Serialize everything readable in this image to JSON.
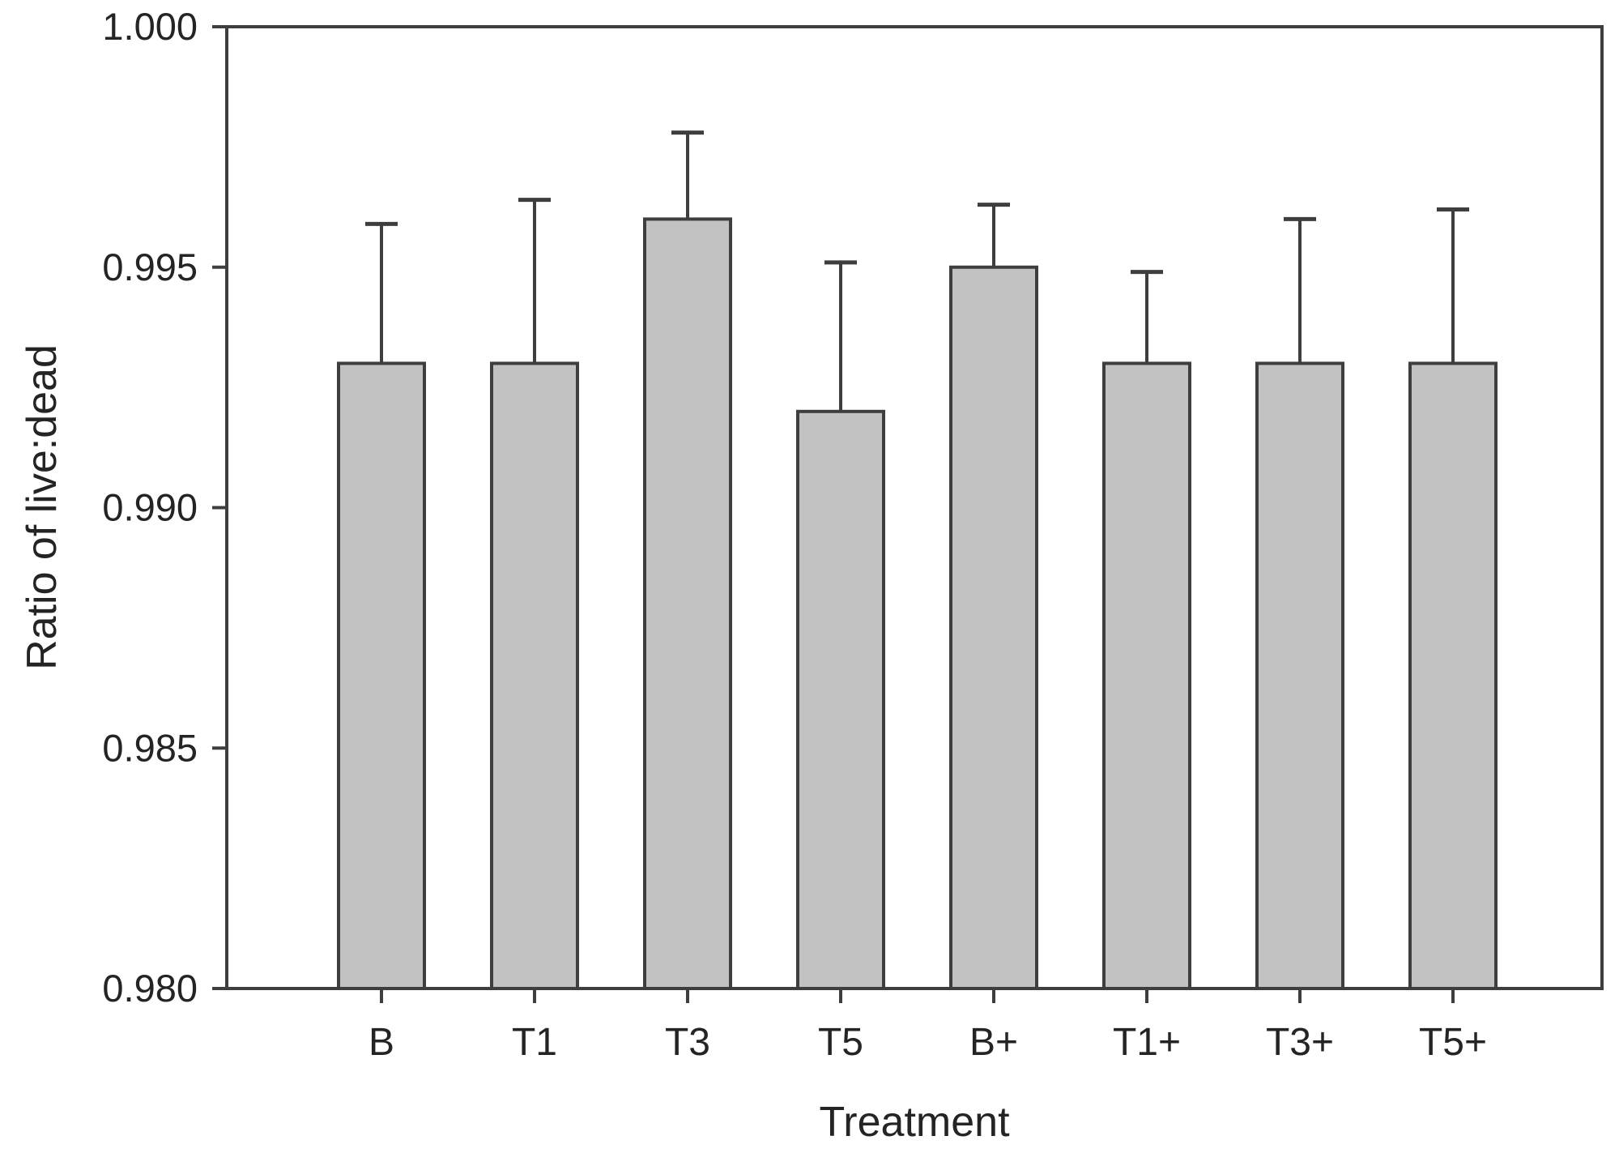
{
  "chart_data": {
    "type": "bar",
    "title": "",
    "xlabel": "Treatment",
    "ylabel": "Ratio of live:dead",
    "categories": [
      "B",
      "T1",
      "T3",
      "T5",
      "B+",
      "T1+",
      "T3+",
      "T5+"
    ],
    "values": [
      0.993,
      0.993,
      0.996,
      0.992,
      0.995,
      0.993,
      0.993,
      0.993
    ],
    "errors_upper": [
      0.0029,
      0.0034,
      0.0018,
      0.0031,
      0.0013,
      0.0019,
      0.003,
      0.0032
    ],
    "ylim": [
      0.98,
      1.0
    ],
    "yticks": [
      0.98,
      0.985,
      0.99,
      0.995,
      1.0
    ],
    "ytick_labels": [
      "0.980",
      "0.985",
      "0.990",
      "0.995",
      "1.000"
    ],
    "grid": false,
    "legend": "none",
    "bar_fill": "#c2c2c2",
    "bar_stroke": "#3e3e3e",
    "axis_color": "#3e3e3e",
    "text_color": "#242424"
  }
}
